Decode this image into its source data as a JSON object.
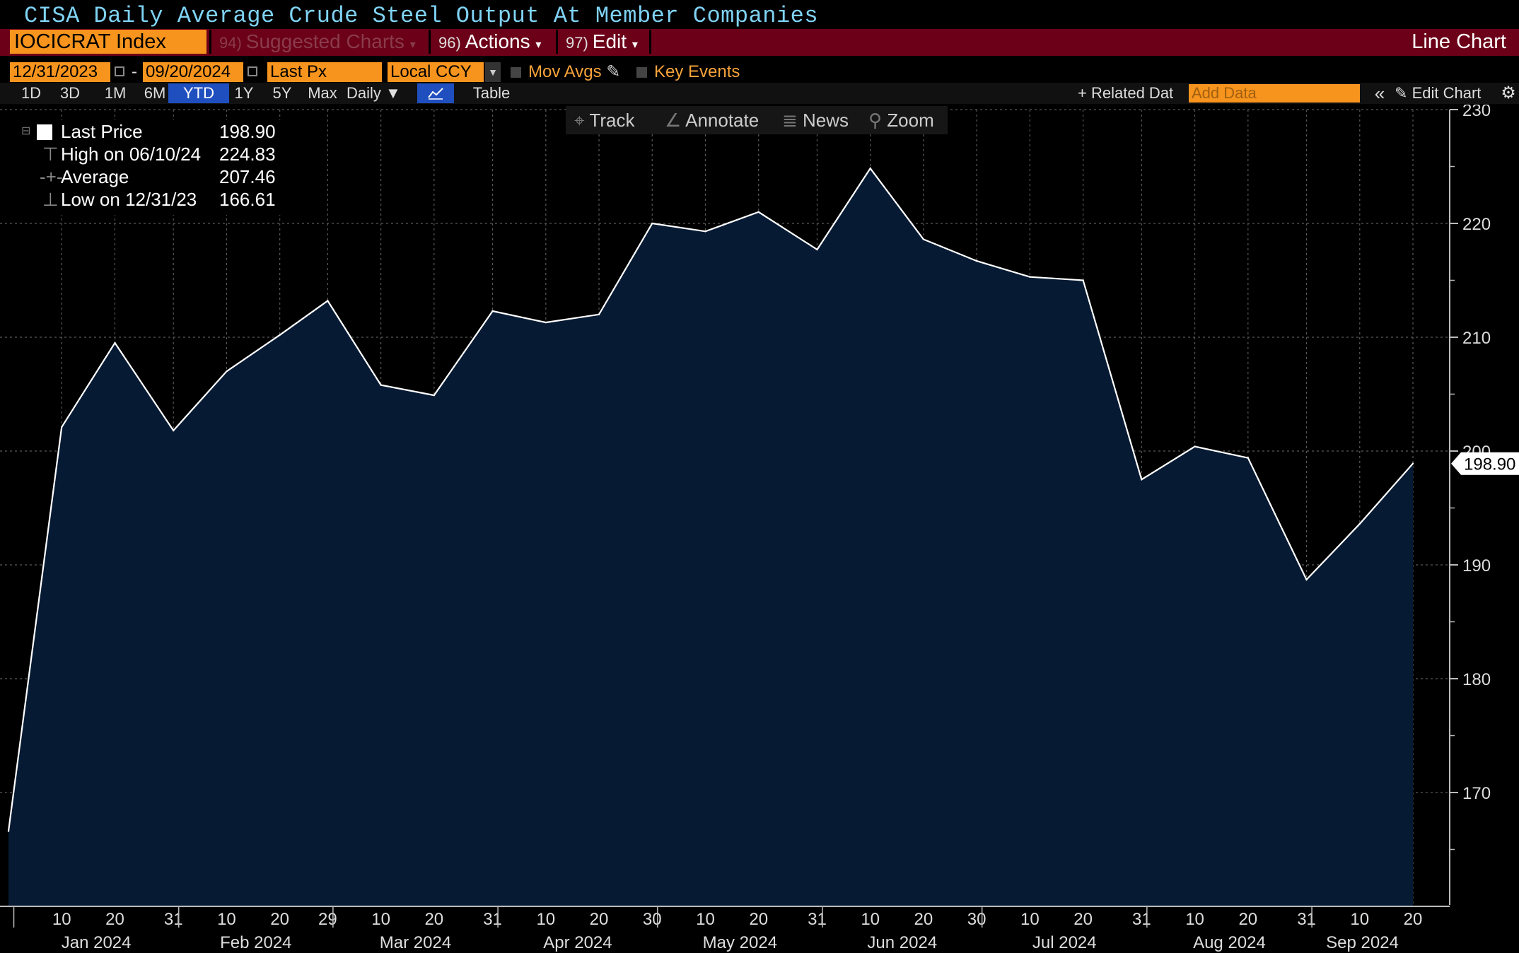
{
  "header": {
    "title": "CISA Daily Average Crude Steel Output At Member Companies",
    "ticker": "IOCICRAT Index",
    "suggested_num": "94)",
    "suggested_label": "Suggested Charts",
    "actions_num": "96)",
    "actions_label": "Actions",
    "edit_num": "97)",
    "edit_label": "Edit",
    "chart_type": "Line Chart"
  },
  "controls": {
    "start_date": "12/31/2023",
    "end_date": "09/20/2024",
    "date_dash": "-",
    "field": "Last Px",
    "currency": "Local CCY",
    "mov_avgs": "Mov Avgs",
    "key_events": "Key Events"
  },
  "range_buttons": [
    "1D",
    "3D",
    "1M",
    "6M",
    "YTD",
    "1Y",
    "5Y",
    "Max"
  ],
  "active_range": "YTD",
  "frequency": "Daily",
  "table_label": "Table",
  "related_data": "Related Dat",
  "add_data_placeholder": "Add Data",
  "edit_chart": "Edit Chart",
  "tools": {
    "track": "Track",
    "annotate": "Annotate",
    "news": "News",
    "zoom": "Zoom"
  },
  "legend": {
    "last_price_label": "Last Price",
    "last_price_value": "198.90",
    "high_label": "High on 06/10/24",
    "high_value": "224.83",
    "average_label": "Average",
    "average_value": "207.46",
    "low_label": "Low on 12/31/23",
    "low_value": "166.61"
  },
  "colors": {
    "line": "#ffffff",
    "area": "#061a33",
    "accent": "#f7941d",
    "menu_bar": "#6b0018"
  },
  "chart_data": {
    "type": "area",
    "x": [
      "2023-12-31",
      "2024-01-10",
      "2024-01-20",
      "2024-01-31",
      "2024-02-10",
      "2024-02-20",
      "2024-02-29",
      "2024-03-10",
      "2024-03-20",
      "2024-03-31",
      "2024-04-10",
      "2024-04-20",
      "2024-04-30",
      "2024-05-10",
      "2024-05-20",
      "2024-05-31",
      "2024-06-10",
      "2024-06-20",
      "2024-06-30",
      "2024-07-10",
      "2024-07-20",
      "2024-07-31",
      "2024-08-10",
      "2024-08-20",
      "2024-08-31",
      "2024-09-10",
      "2024-09-20"
    ],
    "values": [
      166.61,
      202.1,
      209.5,
      201.8,
      207.0,
      210.2,
      213.2,
      205.8,
      204.9,
      212.3,
      211.3,
      212.0,
      220.0,
      219.3,
      221.0,
      217.7,
      224.83,
      218.6,
      216.7,
      215.3,
      215.0,
      197.5,
      200.4,
      199.4,
      188.7,
      193.6,
      198.9
    ],
    "last_value_label": "198.90",
    "ylim": [
      160,
      230
    ],
    "yticks": [
      170,
      180,
      190,
      200,
      210,
      220,
      230
    ],
    "xtick_labels": [
      "10",
      "20",
      "31",
      "10",
      "20",
      "29",
      "10",
      "20",
      "31",
      "10",
      "20",
      "30",
      "10",
      "20",
      "31",
      "10",
      "20",
      "30",
      "10",
      "20",
      "31",
      "10",
      "20",
      "31",
      "10",
      "20"
    ],
    "month_labels": [
      "Jan 2024",
      "Feb 2024",
      "Mar 2024",
      "Apr 2024",
      "May 2024",
      "Jun 2024",
      "Jul 2024",
      "Aug 2024",
      "Sep 2024"
    ],
    "grid": true
  }
}
